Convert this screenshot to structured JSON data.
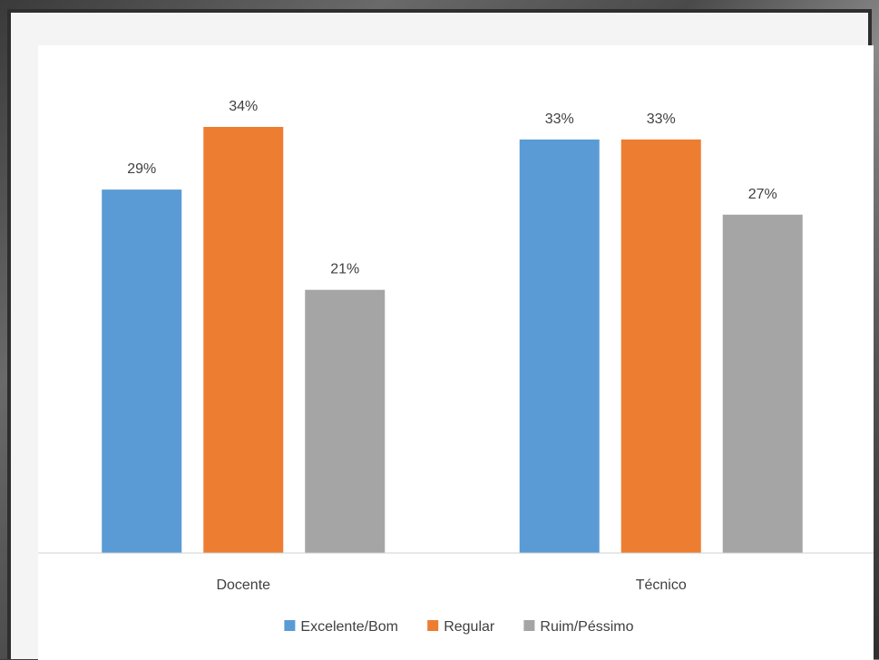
{
  "chart_data": {
    "type": "bar",
    "categories": [
      "Docente",
      "Técnico"
    ],
    "series": [
      {
        "name": "Excelente/Bom",
        "values": [
          29,
          33
        ],
        "labels": [
          "29%",
          "33%"
        ],
        "color": "#5b9bd5"
      },
      {
        "name": "Regular",
        "values": [
          34,
          33
        ],
        "labels": [
          "34%",
          "33%"
        ],
        "color": "#ed7d31"
      },
      {
        "name": "Ruim/Péssimo",
        "values": [
          21,
          27
        ],
        "labels": [
          "21%",
          "27%"
        ],
        "color": "#a5a5a5"
      }
    ],
    "ylim": [
      0,
      40
    ],
    "unit": "%",
    "grid": false,
    "legend": "bottom-center"
  }
}
